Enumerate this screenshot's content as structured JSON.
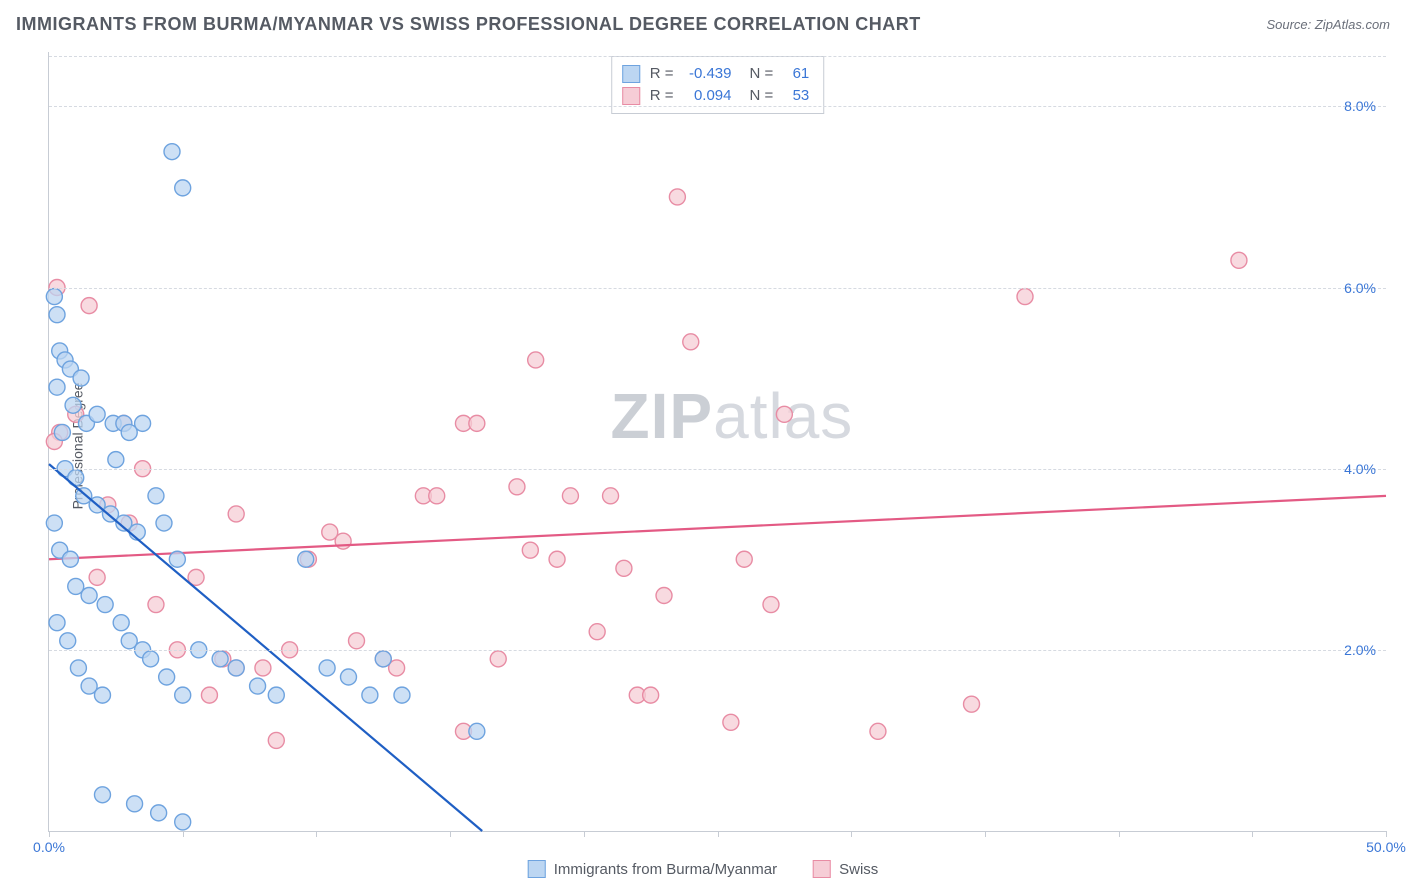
{
  "title": "IMMIGRANTS FROM BURMA/MYANMAR VS SWISS PROFESSIONAL DEGREE CORRELATION CHART",
  "source": "Source: ZipAtlas.com",
  "ylabel": "Professional Degree",
  "watermark_left": "ZIP",
  "watermark_right": "atlas",
  "chart": {
    "type": "scatter",
    "xlim": [
      0,
      50
    ],
    "ylim": [
      0,
      8.6
    ],
    "xticks": [
      0,
      5,
      10,
      15,
      20,
      25,
      30,
      35,
      40,
      45,
      50
    ],
    "xtick_labels": {
      "0": "0.0%",
      "50": "50.0%"
    },
    "yticks": [
      2.0,
      4.0,
      6.0,
      8.0
    ],
    "ytick_labels": [
      "2.0%",
      "4.0%",
      "6.0%",
      "8.0%"
    ],
    "grid_color": "#d6dae1",
    "axis_color": "#c7ccd4",
    "background_color": "#ffffff",
    "tick_label_color": "#3a76d6",
    "marker_radius": 8,
    "marker_stroke_width": 1.4,
    "line_width": 2.2
  },
  "series": {
    "burma": {
      "label": "Immigrants from Burma/Myanmar",
      "color_fill": "#bcd6f2",
      "color_stroke": "#6ea3df",
      "line_color": "#1f5fc4",
      "R": "-0.439",
      "N": "61",
      "trend": {
        "x1": 0,
        "y1": 4.05,
        "x2": 16.2,
        "y2": 0.0
      },
      "points": [
        [
          0.2,
          5.9
        ],
        [
          0.3,
          5.7
        ],
        [
          0.4,
          5.3
        ],
        [
          0.6,
          5.2
        ],
        [
          0.8,
          5.1
        ],
        [
          0.3,
          4.9
        ],
        [
          1.4,
          4.5
        ],
        [
          1.8,
          4.6
        ],
        [
          2.4,
          4.5
        ],
        [
          2.8,
          4.5
        ],
        [
          3.0,
          4.4
        ],
        [
          3.5,
          4.5
        ],
        [
          0.5,
          4.4
        ],
        [
          0.6,
          4.0
        ],
        [
          1.0,
          3.9
        ],
        [
          1.3,
          3.7
        ],
        [
          1.8,
          3.6
        ],
        [
          2.3,
          3.5
        ],
        [
          2.8,
          3.4
        ],
        [
          3.3,
          3.3
        ],
        [
          0.2,
          3.4
        ],
        [
          0.4,
          3.1
        ],
        [
          0.8,
          3.0
        ],
        [
          1.0,
          2.7
        ],
        [
          1.5,
          2.6
        ],
        [
          2.1,
          2.5
        ],
        [
          2.7,
          2.3
        ],
        [
          3.0,
          2.1
        ],
        [
          3.5,
          2.0
        ],
        [
          0.3,
          2.3
        ],
        [
          0.7,
          2.1
        ],
        [
          1.1,
          1.8
        ],
        [
          1.5,
          1.6
        ],
        [
          2.0,
          1.5
        ],
        [
          4.0,
          3.7
        ],
        [
          4.3,
          3.4
        ],
        [
          4.8,
          3.0
        ],
        [
          3.8,
          1.9
        ],
        [
          4.4,
          1.7
        ],
        [
          5.0,
          1.5
        ],
        [
          5.6,
          2.0
        ],
        [
          6.4,
          1.9
        ],
        [
          7.0,
          1.8
        ],
        [
          7.8,
          1.6
        ],
        [
          8.5,
          1.5
        ],
        [
          9.6,
          3.0
        ],
        [
          10.4,
          1.8
        ],
        [
          11.2,
          1.7
        ],
        [
          12.0,
          1.5
        ],
        [
          12.5,
          1.9
        ],
        [
          13.2,
          1.5
        ],
        [
          16.0,
          1.1
        ],
        [
          2.0,
          0.4
        ],
        [
          3.2,
          0.3
        ],
        [
          4.1,
          0.2
        ],
        [
          5.0,
          0.1
        ],
        [
          4.6,
          7.5
        ],
        [
          5.0,
          7.1
        ],
        [
          1.2,
          5.0
        ],
        [
          0.9,
          4.7
        ],
        [
          2.5,
          4.1
        ]
      ]
    },
    "swiss": {
      "label": "Swiss",
      "color_fill": "#f6cdd6",
      "color_stroke": "#e88ca4",
      "line_color": "#e35a84",
      "R": "0.094",
      "N": "53",
      "trend": {
        "x1": 0,
        "y1": 3.0,
        "x2": 50,
        "y2": 3.7
      },
      "points": [
        [
          0.3,
          6.0
        ],
        [
          1.5,
          5.8
        ],
        [
          1.0,
          4.6
        ],
        [
          2.8,
          4.5
        ],
        [
          0.4,
          4.4
        ],
        [
          0.2,
          4.3
        ],
        [
          2.2,
          3.6
        ],
        [
          3.0,
          3.4
        ],
        [
          1.8,
          2.8
        ],
        [
          4.0,
          2.5
        ],
        [
          4.8,
          2.0
        ],
        [
          6.5,
          1.9
        ],
        [
          7.0,
          1.8
        ],
        [
          7.0,
          3.5
        ],
        [
          8.0,
          1.8
        ],
        [
          8.5,
          1.0
        ],
        [
          9.7,
          3.0
        ],
        [
          10.5,
          3.3
        ],
        [
          11.0,
          3.2
        ],
        [
          12.5,
          1.9
        ],
        [
          13.0,
          1.8
        ],
        [
          14.0,
          3.7
        ],
        [
          14.5,
          3.7
        ],
        [
          15.5,
          4.5
        ],
        [
          16.0,
          4.5
        ],
        [
          16.8,
          1.9
        ],
        [
          15.5,
          1.1
        ],
        [
          17.5,
          3.8
        ],
        [
          18.0,
          3.1
        ],
        [
          18.2,
          5.2
        ],
        [
          19.5,
          3.7
        ],
        [
          20.5,
          2.2
        ],
        [
          21.0,
          3.7
        ],
        [
          21.5,
          2.9
        ],
        [
          22.0,
          1.5
        ],
        [
          22.5,
          1.5
        ],
        [
          23.0,
          2.6
        ],
        [
          23.5,
          7.0
        ],
        [
          24.0,
          5.4
        ],
        [
          25.5,
          1.2
        ],
        [
          26.0,
          3.0
        ],
        [
          27.5,
          4.6
        ],
        [
          31.0,
          1.1
        ],
        [
          34.5,
          1.4
        ],
        [
          36.5,
          5.9
        ],
        [
          44.5,
          6.3
        ],
        [
          3.5,
          4.0
        ],
        [
          5.5,
          2.8
        ],
        [
          6.0,
          1.5
        ],
        [
          9.0,
          2.0
        ],
        [
          11.5,
          2.1
        ],
        [
          19.0,
          3.0
        ],
        [
          27.0,
          2.5
        ]
      ]
    }
  },
  "legend_stats_label_R": "R =",
  "legend_stats_label_N": "N ="
}
